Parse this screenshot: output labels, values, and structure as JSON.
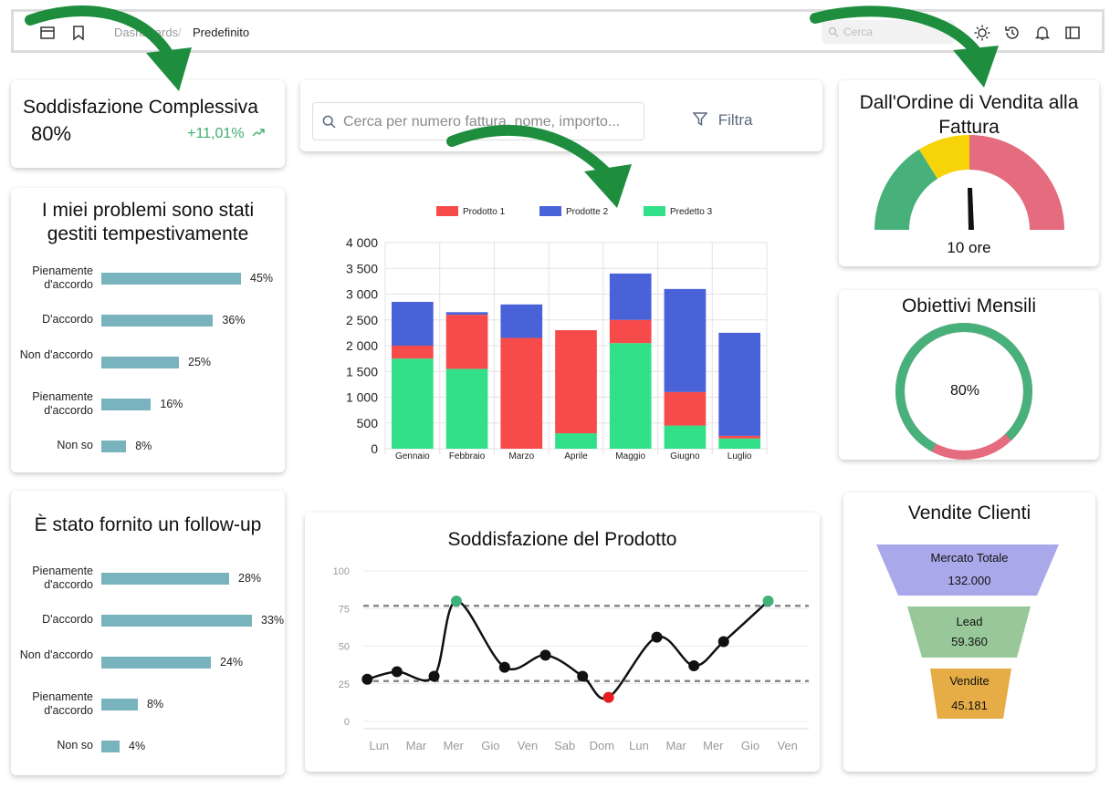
{
  "header": {
    "breadcrumb_parent": "Dashboards",
    "breadcrumb_separator": "/",
    "breadcrumb_current": "Predefinito",
    "search_placeholder": "Cerca",
    "icons": [
      "layout-icon",
      "star-icon",
      "sun-icon",
      "history-icon",
      "bell-icon",
      "sidebar-icon"
    ]
  },
  "kpi": {
    "title": "Soddisfazione Complessiva",
    "value": "80%",
    "delta": "+11,01%",
    "delta_color": "#3fae6b"
  },
  "survey1": {
    "title_line1": "I miei problemi sono stati",
    "title_line2": "gestiti tempestivamente",
    "rows": [
      {
        "label": "Pienamente d'accordo",
        "value": 45,
        "display": "45%"
      },
      {
        "label": "D'accordo",
        "value": 36,
        "display": "36%"
      },
      {
        "label": "Non d'accordo",
        "value": 25,
        "display": "25%"
      },
      {
        "label": "Pienamente d'accordo",
        "value": 16,
        "display": "16%"
      },
      {
        "label": "Non so",
        "value": 8,
        "display": "8%"
      }
    ]
  },
  "survey2": {
    "title": "È stato fornito un follow-up",
    "rows": [
      {
        "label": "Pienamente d'accordo",
        "value": 28,
        "display": "28%"
      },
      {
        "label": "D'accordo",
        "value": 33,
        "display": "33%"
      },
      {
        "label": "Non d'accordo",
        "value": 24,
        "display": "24%"
      },
      {
        "label": "Pienamente d'accordo",
        "value": 8,
        "display": "8%"
      },
      {
        "label": "Non so",
        "value": 4,
        "display": "4%"
      }
    ]
  },
  "filter": {
    "placeholder": "Cerca per numero fattura, nome, importo...",
    "button_label": "Filtra"
  },
  "gauge": {
    "title_line1": "Dall'Ordine di Vendita alla",
    "title_line2": "Fattura",
    "value_label": "10 ore",
    "colors": {
      "green": "#48b07a",
      "yellow": "#f7d40a",
      "red": "#e56b7e"
    }
  },
  "objectives": {
    "title": "Obiettivi Mensili",
    "value": 80,
    "display": "80%",
    "colors": {
      "achieved": "#48b07a",
      "remaining": "#e56b7e"
    }
  },
  "funnel": {
    "title": "Vendite Clienti",
    "stages": [
      {
        "label": "Mercato Totale",
        "value": "132.000",
        "color": "#a9a8ea"
      },
      {
        "label": "Lead",
        "value": "59.360",
        "color": "#98c89a"
      },
      {
        "label": "Vendite",
        "value": "45.181",
        "color": "#e6ac45"
      }
    ]
  },
  "chart_data": [
    {
      "type": "bar",
      "stacked": true,
      "categories": [
        "Gennaio",
        "Febbraio",
        "Marzo",
        "Aprile",
        "Maggio",
        "Giugno",
        "Luglio"
      ],
      "series": [
        {
          "name": "Predetto 3",
          "color": "#33e08a",
          "values": [
            1750,
            1550,
            0,
            300,
            2050,
            450,
            200
          ]
        },
        {
          "name": "Prodotto 1",
          "color": "#f74b4b",
          "values": [
            250,
            1050,
            2150,
            2000,
            450,
            650,
            50
          ]
        },
        {
          "name": "Prodotte 2",
          "color": "#4a62d8",
          "values": [
            850,
            50,
            650,
            0,
            900,
            2000,
            2000
          ]
        }
      ],
      "legend_order": [
        "Prodotto 1",
        "Prodotte 2",
        "Predetto 3"
      ],
      "y_ticks": [
        "4 000",
        "3 500",
        "3 000",
        "2 500",
        "2 000",
        "1 500",
        "1 000",
        "500",
        "0"
      ],
      "ylim": [
        0,
        4000
      ],
      "grid": true,
      "legend_position": "top"
    },
    {
      "type": "line",
      "title": "Soddisfazione del Prodotto",
      "categories": [
        "Lun",
        "Mar",
        "Mer",
        "Gio",
        "Ven",
        "Sab",
        "Dom",
        "Lun",
        "Mar",
        "Mer",
        "Gio",
        "Ven"
      ],
      "points": [
        {
          "x": 0.0,
          "y": 28,
          "color": "#111111"
        },
        {
          "x": 0.8,
          "y": 33,
          "color": "#111111"
        },
        {
          "x": 1.8,
          "y": 30,
          "color": "#111111"
        },
        {
          "x": 2.4,
          "y": 80,
          "color": "#3fb27a"
        },
        {
          "x": 3.7,
          "y": 36,
          "color": "#111111"
        },
        {
          "x": 4.8,
          "y": 44,
          "color": "#111111"
        },
        {
          "x": 5.8,
          "y": 30,
          "color": "#111111"
        },
        {
          "x": 6.5,
          "y": 16,
          "color": "#e81c1c"
        },
        {
          "x": 7.8,
          "y": 56,
          "color": "#111111"
        },
        {
          "x": 8.8,
          "y": 37,
          "color": "#111111"
        },
        {
          "x": 9.6,
          "y": 53,
          "color": "#111111"
        },
        {
          "x": 10.8,
          "y": 80,
          "color": "#3fb27a"
        }
      ],
      "y_ticks": [
        "100",
        "75",
        "50",
        "25",
        "0"
      ],
      "ylim": [
        0,
        100
      ],
      "reference_lines": [
        75,
        25
      ]
    }
  ]
}
